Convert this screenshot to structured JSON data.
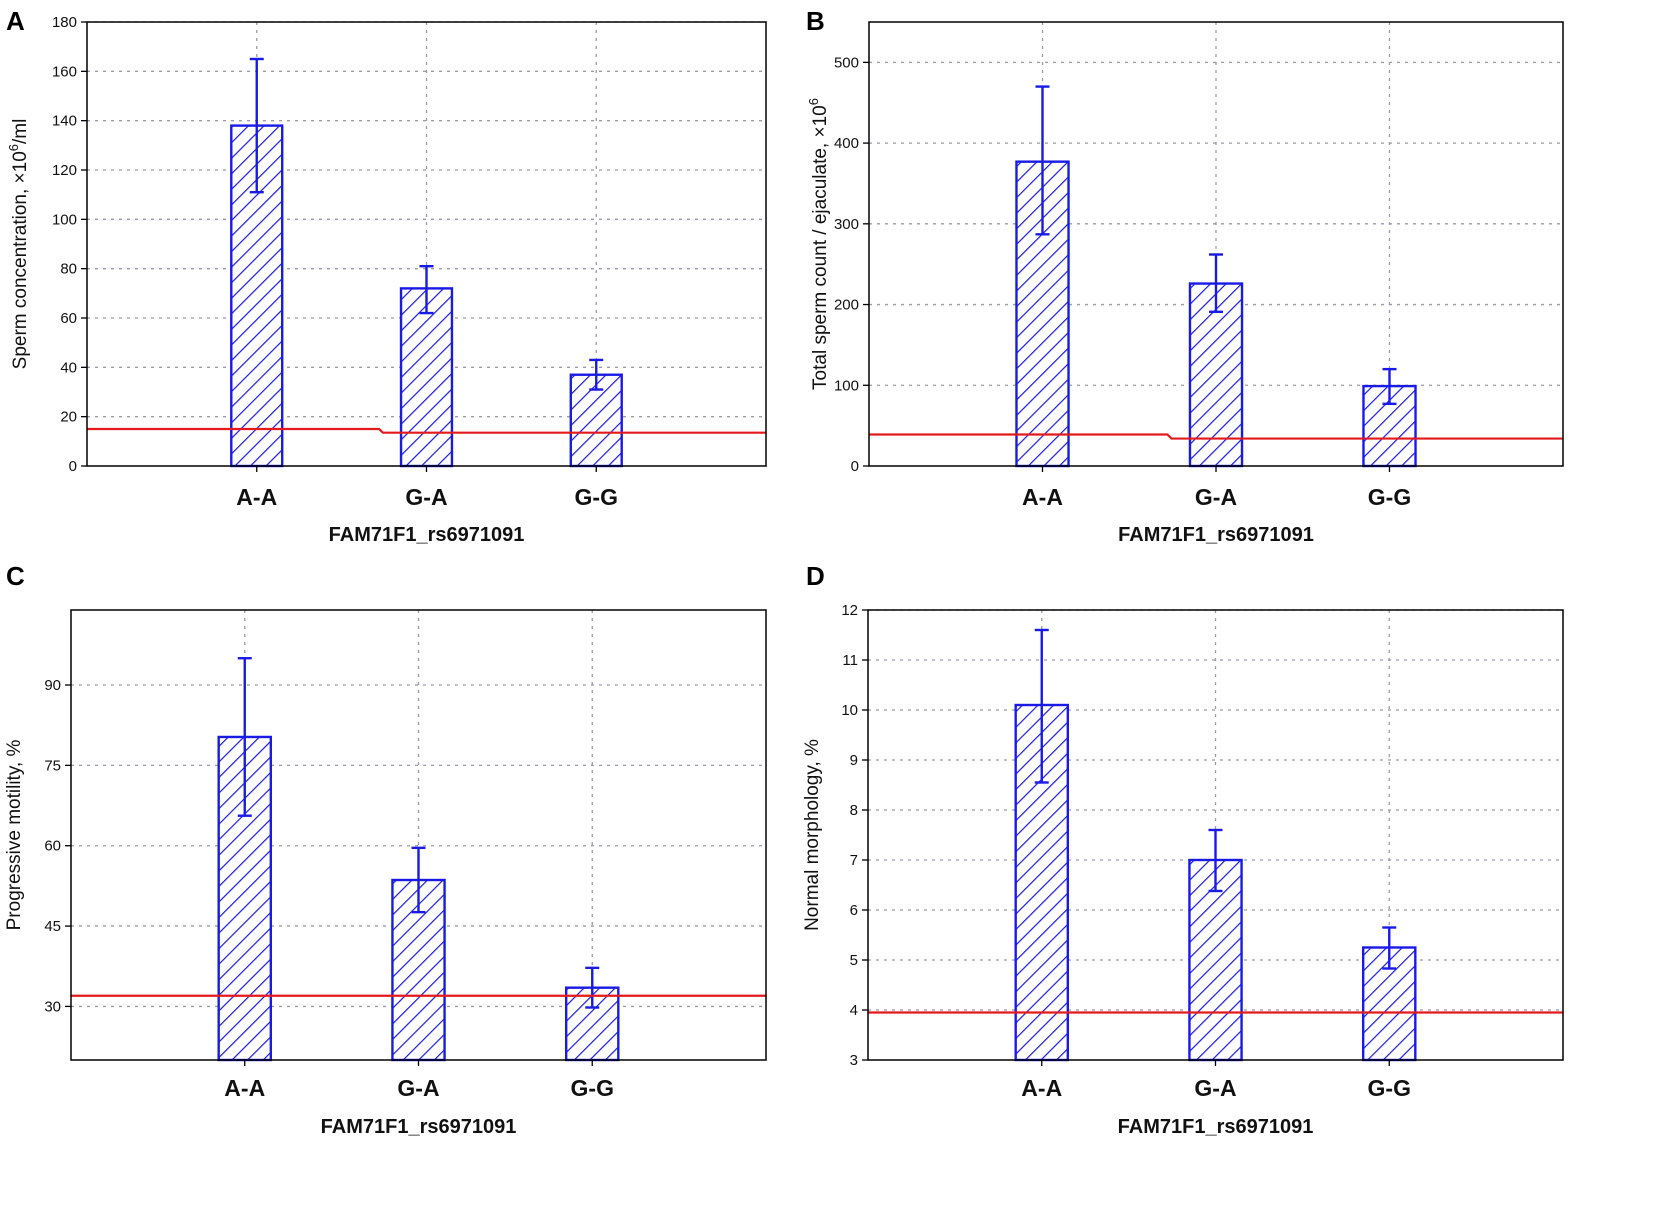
{
  "colors": {
    "bar": "#1a1ae6",
    "threshold": "#e31a1c",
    "grid": "#9a9aa8",
    "axis": "#000000"
  },
  "chart_data": [
    {
      "panel": "A",
      "type": "bar",
      "categories": [
        "A-A",
        "G-A",
        "G-G"
      ],
      "values": [
        138,
        72,
        37
      ],
      "error_high": [
        165,
        81,
        43
      ],
      "error_low": [
        111,
        62,
        31
      ],
      "ylim": [
        0,
        180
      ],
      "yticks": [
        0,
        20,
        40,
        60,
        80,
        100,
        120,
        140,
        160,
        180
      ],
      "ylabel": "Sperm concentration, ×10",
      "ylabel_sup": "6",
      "ylabel_suffix": "/ml",
      "xlabel": "FAM71F1_rs6971091",
      "reference_line": {
        "left": 15,
        "right": 13.5
      },
      "grid": true
    },
    {
      "panel": "B",
      "type": "bar",
      "categories": [
        "A-A",
        "G-A",
        "G-G"
      ],
      "values": [
        377,
        226,
        99
      ],
      "error_high": [
        470,
        262,
        120
      ],
      "error_low": [
        287,
        191,
        77
      ],
      "ylim": [
        0,
        550
      ],
      "yticks": [
        0,
        100,
        200,
        300,
        400,
        500
      ],
      "ylabel": "Total sperm count / ejaculate, ×10",
      "ylabel_sup": "6",
      "ylabel_suffix": "",
      "xlabel": "FAM71F1_rs6971091",
      "reference_line": {
        "left": 39,
        "right": 34
      },
      "grid": true
    },
    {
      "panel": "C",
      "type": "bar",
      "categories": [
        "A-A",
        "G-A",
        "G-G"
      ],
      "values": [
        80.3,
        53.6,
        33.5
      ],
      "error_high": [
        95,
        59.6,
        37.2
      ],
      "error_low": [
        65.6,
        47.6,
        29.8
      ],
      "ylim": [
        20,
        104
      ],
      "yticks": [
        30,
        45,
        60,
        75,
        90
      ],
      "ylabel": "Progressive motility, %",
      "ylabel_sup": "",
      "ylabel_suffix": "",
      "xlabel": "FAM71F1_rs6971091",
      "reference_line": {
        "left": 32,
        "right": 32
      },
      "grid": true
    },
    {
      "panel": "D",
      "type": "bar",
      "categories": [
        "A-A",
        "G-A",
        "G-G"
      ],
      "values": [
        10.1,
        7.0,
        5.25
      ],
      "error_high": [
        11.6,
        7.6,
        5.65
      ],
      "error_low": [
        8.55,
        6.38,
        4.83
      ],
      "ylim": [
        3,
        12
      ],
      "yticks": [
        3,
        4,
        5,
        6,
        7,
        8,
        9,
        10,
        11,
        12
      ],
      "ylabel": "Normal morphology, %",
      "ylabel_sup": "",
      "ylabel_suffix": "",
      "xlabel": "FAM71F1_rs6971091",
      "reference_line": {
        "left": 3.95,
        "right": 3.95
      },
      "grid": true
    }
  ]
}
